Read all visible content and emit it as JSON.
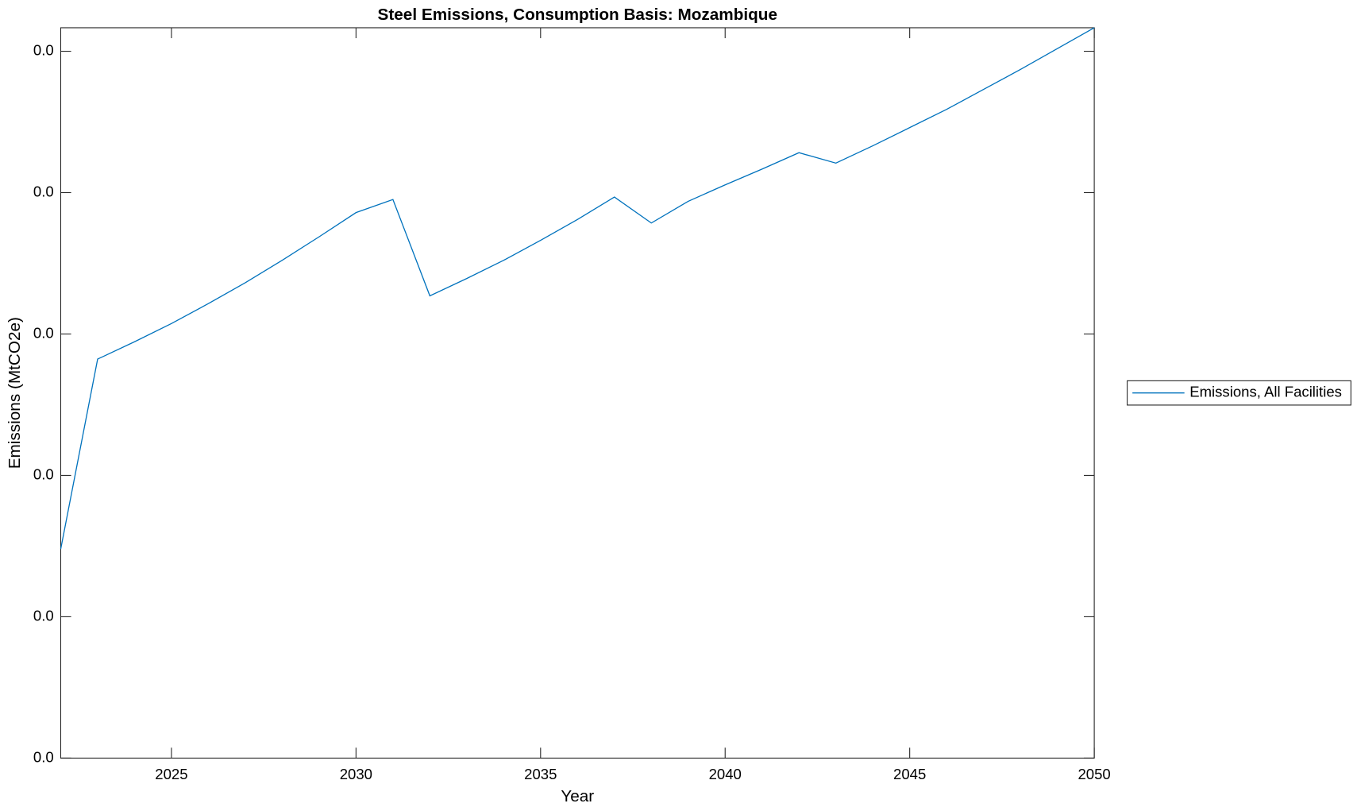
{
  "chart_data": {
    "type": "line",
    "title": "Steel Emissions, Consumption Basis: Mozambique",
    "x_label": "Year",
    "y_label": "Emissions (MtCO2e)",
    "x": [
      2022,
      2023,
      2024,
      2025,
      2026,
      2027,
      2028,
      2029,
      2030,
      2031,
      2032,
      2033,
      2034,
      2035,
      2036,
      2037,
      2038,
      2039,
      2040,
      2041,
      2042,
      2043,
      2044,
      2045,
      2046,
      2047,
      2048,
      2049,
      2050
    ],
    "series": [
      {
        "name": "Emissions, All Facilities",
        "color": "#0072bd",
        "values": [
          0.01183,
          0.02258,
          0.02356,
          0.02459,
          0.02572,
          0.0269,
          0.02817,
          0.0295,
          0.03087,
          0.03161,
          0.02616,
          0.02714,
          0.02817,
          0.0293,
          0.03048,
          0.03175,
          0.03028,
          0.03151,
          0.03244,
          0.03333,
          0.03426,
          0.03367,
          0.03465,
          0.03568,
          0.03671,
          0.03784,
          0.03897,
          0.04015,
          0.04133
        ]
      }
    ],
    "xlim": [
      2022,
      2050
    ],
    "xticks": [
      2025,
      2030,
      2035,
      2040,
      2045,
      2050
    ],
    "ylim": [
      0,
      0.04133
    ],
    "yticks": [
      {
        "value": 0,
        "label": "0.0"
      },
      {
        "value": 0.008,
        "label": "0.0"
      },
      {
        "value": 0.016,
        "label": "0.0"
      },
      {
        "value": 0.024,
        "label": "0.0"
      },
      {
        "value": 0.032,
        "label": "0.0"
      },
      {
        "value": 0.04,
        "label": "0.0"
      }
    ],
    "legend": "outside-right"
  }
}
